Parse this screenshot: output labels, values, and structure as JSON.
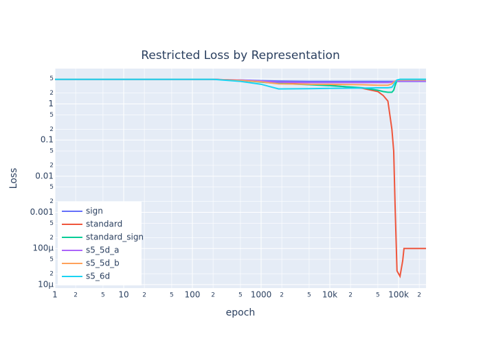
{
  "chart_data": {
    "type": "line",
    "title": "Restricted Loss by Representation",
    "x_label": "epoch",
    "y_label": "Loss",
    "x_log": true,
    "y_log": true,
    "grid": true,
    "legend_position": "bottom-left",
    "x": [
      1,
      10,
      100,
      200,
      500,
      1000,
      1800,
      5000,
      10000,
      30000,
      50000,
      60000,
      70000,
      80000,
      85000,
      89000,
      95000,
      105000,
      115000,
      120000,
      251189
    ],
    "series": [
      {
        "name": "sign",
        "color": "#636efa",
        "values": [
          4.8,
          4.8,
          4.8,
          4.8,
          4.6,
          4.4,
          4.3,
          4.2,
          4.2,
          4.2,
          4.2,
          4.2,
          4.2,
          4.2,
          4.2,
          4.2,
          4.2,
          4.2,
          4.2,
          4.2,
          4.2
        ]
      },
      {
        "name": "standard",
        "color": "#EF553B",
        "values": [
          4.8,
          4.8,
          4.8,
          4.8,
          4.5,
          4.1,
          3.8,
          3.5,
          3.3,
          2.7,
          2.2,
          1.7,
          1.2,
          0.2,
          0.05,
          0.0016,
          2.4e-05,
          1.7e-05,
          4.6e-05,
          0.0001,
          0.0001
        ]
      },
      {
        "name": "standard_sign",
        "color": "#00cc96",
        "values": [
          4.8,
          4.8,
          4.8,
          4.8,
          4.5,
          4.0,
          3.7,
          3.4,
          3.2,
          2.8,
          2.4,
          2.2,
          2.1,
          2.1,
          2.4,
          3.2,
          4.5,
          4.8,
          4.8,
          4.8,
          4.8
        ]
      },
      {
        "name": "s5_5d_a",
        "color": "#ab63fa",
        "values": [
          4.8,
          4.8,
          4.8,
          4.8,
          4.6,
          4.3,
          4.0,
          3.9,
          3.9,
          3.9,
          3.9,
          3.9,
          3.9,
          4.0,
          4.2,
          4.3,
          4.3,
          4.3,
          4.3,
          4.3,
          4.3
        ]
      },
      {
        "name": "s5_5d_b",
        "color": "#FFA15A",
        "values": [
          4.8,
          4.8,
          4.8,
          4.8,
          4.5,
          4.1,
          3.6,
          3.5,
          3.5,
          3.4,
          3.3,
          3.3,
          3.3,
          3.6,
          4.0,
          4.3,
          4.5,
          4.6,
          4.6,
          4.6,
          4.6
        ]
      },
      {
        "name": "s5_6d",
        "color": "#19d3f3",
        "values": [
          4.8,
          4.8,
          4.8,
          4.8,
          4.2,
          3.5,
          2.6,
          2.65,
          2.7,
          2.75,
          2.8,
          2.8,
          2.8,
          2.9,
          3.4,
          4.0,
          4.6,
          4.8,
          4.8,
          4.8,
          4.8
        ]
      }
    ],
    "xlim": [
      1,
      251189
    ],
    "xticks": [
      1,
      2,
      5,
      10,
      {
        "value": 20,
        "label": "2"
      },
      {
        "value": 50,
        "label": "5"
      },
      100,
      {
        "value": 200,
        "label": "2"
      },
      {
        "value": 500,
        "label": "5"
      },
      1000,
      {
        "value": 2000,
        "label": "2"
      },
      {
        "value": 5000,
        "label": "5"
      },
      {
        "value": 10000,
        "label": "10k"
      },
      {
        "value": 20000,
        "label": "2"
      },
      {
        "value": 50000,
        "label": "5"
      },
      {
        "value": 100000,
        "label": "100k"
      },
      {
        "value": 200000,
        "label": "2"
      }
    ],
    "ylim": [
      8e-06,
      9.5
    ],
    "yticks": [
      {
        "value": 1e-05,
        "label": "10μ"
      },
      {
        "value": 2e-05,
        "label": "2"
      },
      {
        "value": 5e-05,
        "label": "5"
      },
      {
        "value": 0.0001,
        "label": "100μ"
      },
      {
        "value": 0.0002,
        "label": "2"
      },
      {
        "value": 0.0005,
        "label": "5"
      },
      0.001,
      {
        "value": 0.002,
        "label": "2"
      },
      {
        "value": 0.005,
        "label": "5"
      },
      0.01,
      {
        "value": 0.02,
        "label": "2"
      },
      {
        "value": 0.05,
        "label": "5"
      },
      0.1,
      {
        "value": 0.2,
        "label": "2"
      },
      {
        "value": 0.5,
        "label": "5"
      },
      1,
      2,
      5
    ]
  }
}
